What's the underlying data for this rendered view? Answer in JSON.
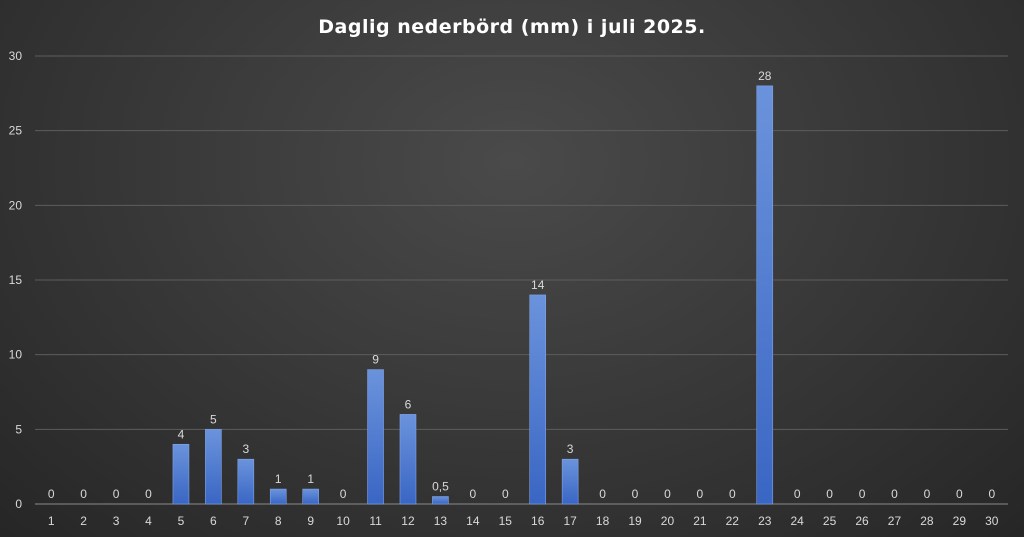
{
  "chart_data": {
    "type": "bar",
    "title": "Daglig nederbörd (mm) i juli 2025.",
    "xlabel": "",
    "ylabel": "",
    "ylim": [
      0,
      30
    ],
    "yticks": [
      "0",
      "5",
      "10",
      "15",
      "20",
      "25",
      "30"
    ],
    "categories": [
      "1",
      "2",
      "3",
      "4",
      "5",
      "6",
      "7",
      "8",
      "9",
      "10",
      "11",
      "12",
      "13",
      "14",
      "15",
      "16",
      "17",
      "18",
      "19",
      "20",
      "21",
      "22",
      "23",
      "24",
      "25",
      "26",
      "27",
      "28",
      "29",
      "30"
    ],
    "values": [
      0,
      0,
      0,
      0,
      4,
      5,
      3,
      1,
      1,
      0,
      9,
      6,
      0.5,
      0,
      0,
      14,
      3,
      0,
      0,
      0,
      0,
      0,
      28,
      0,
      0,
      0,
      0,
      0,
      0,
      0
    ],
    "data_labels": [
      "0",
      "0",
      "0",
      "0",
      "4",
      "5",
      "3",
      "1",
      "1",
      "0",
      "9",
      "6",
      "0,5",
      "0",
      "0",
      "14",
      "3",
      "0",
      "0",
      "0",
      "0",
      "0",
      "28",
      "0",
      "0",
      "0",
      "0",
      "0",
      "0",
      "0"
    ],
    "grid": true,
    "legend": "none",
    "bar_color_top": "#6b93dc",
    "bar_color_bottom": "#3a66c4"
  }
}
